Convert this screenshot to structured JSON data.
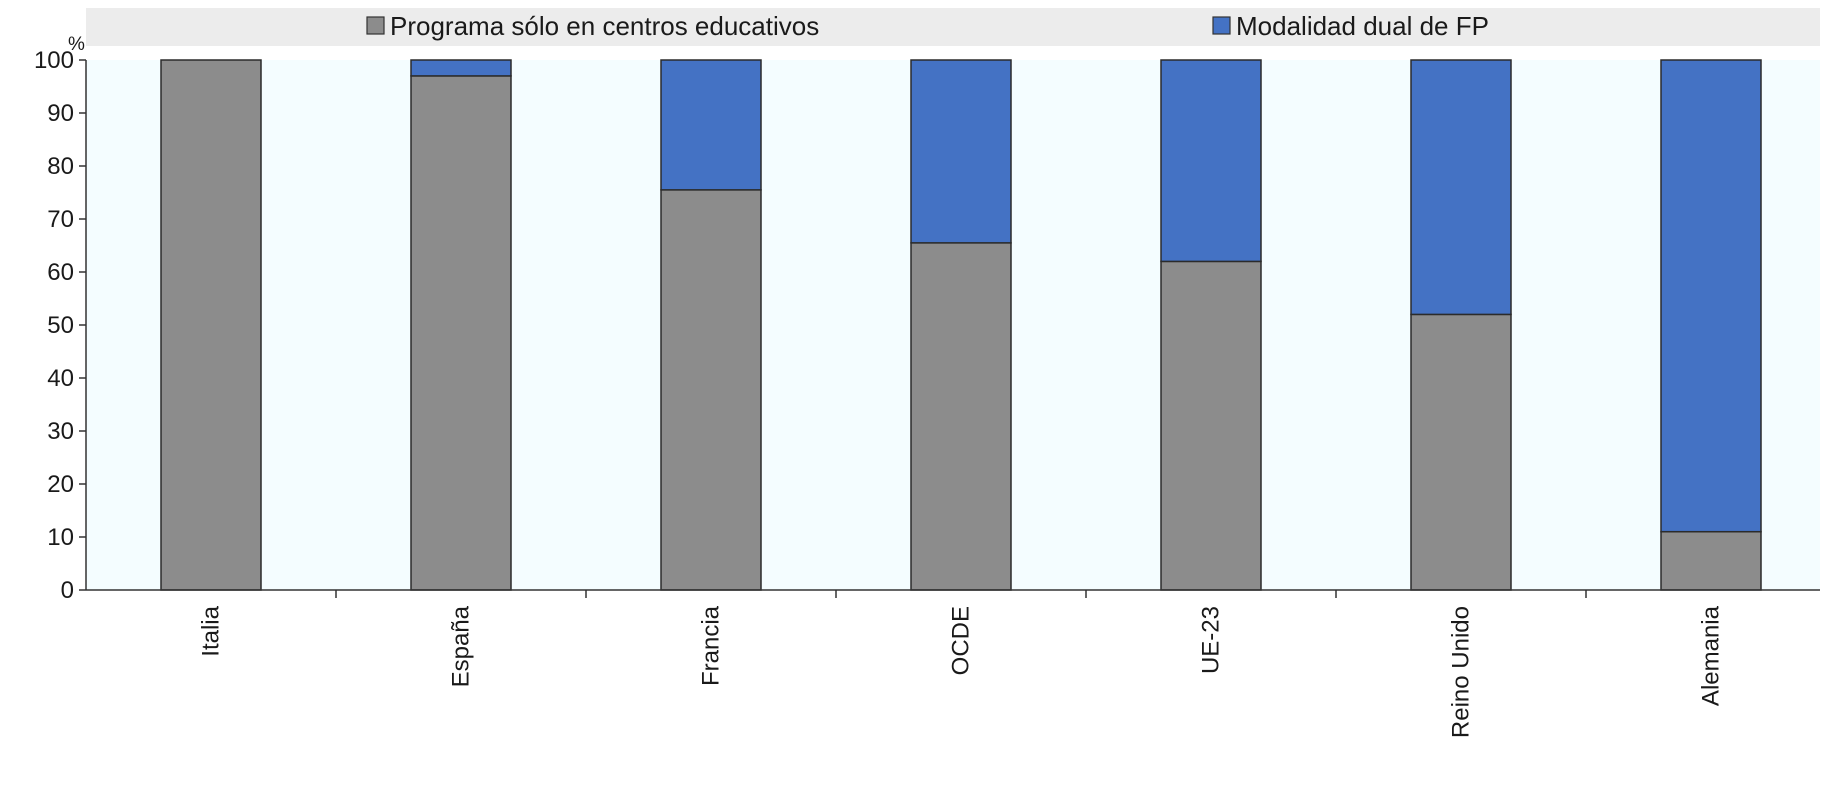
{
  "chart_data": {
    "type": "bar",
    "stacked": true,
    "categories": [
      "Italia",
      "España",
      "Francia",
      "OCDE",
      "UE-23",
      "Reino Unido",
      "Alemania"
    ],
    "series": [
      {
        "name": "Programa sólo en centros educativos",
        "color": "#8c8c8c",
        "values": [
          100,
          97,
          75.5,
          65.5,
          62,
          52,
          11
        ]
      },
      {
        "name": "Modalidad dual de FP",
        "color": "#4472c4",
        "values": [
          0,
          3,
          24.5,
          34.5,
          38,
          48,
          89
        ]
      }
    ],
    "ylim": [
      0,
      100
    ],
    "yticks": [
      0,
      10,
      20,
      30,
      40,
      50,
      60,
      70,
      80,
      90,
      100
    ],
    "y_unit": "%",
    "legend_position": "top",
    "plot_background": "#f4fdff",
    "grid": false
  }
}
